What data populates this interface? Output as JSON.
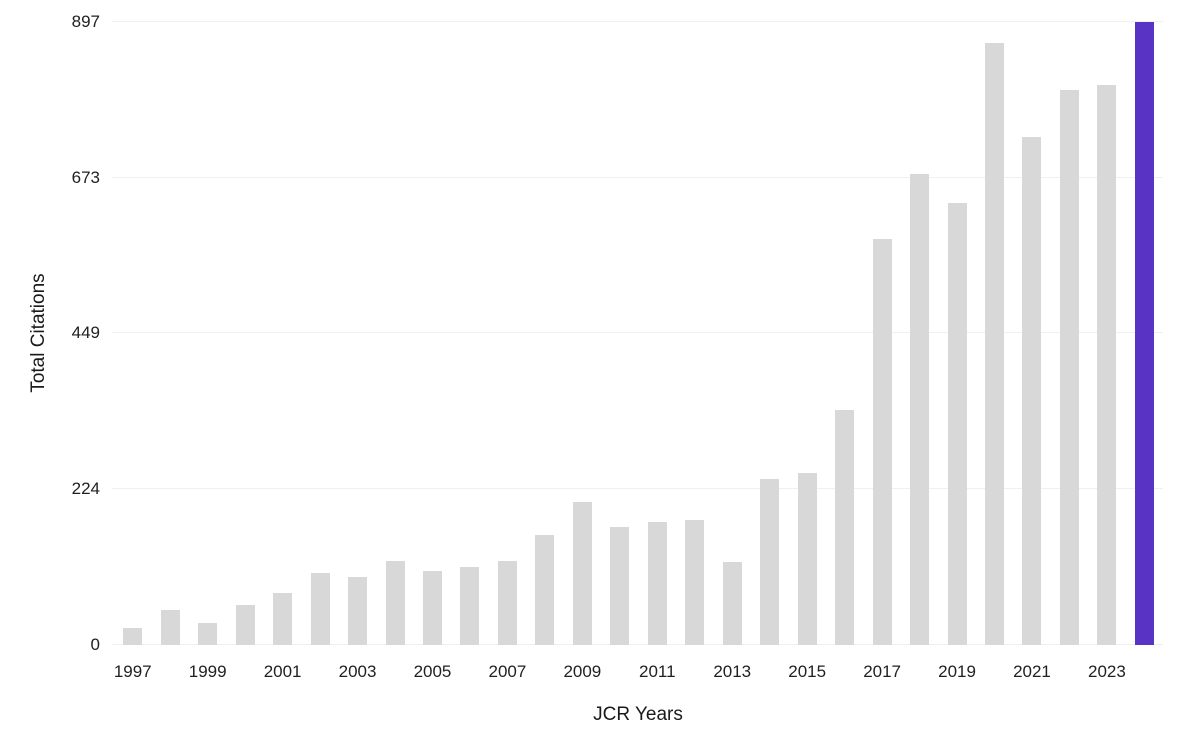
{
  "chart_data": {
    "type": "bar",
    "title": "",
    "xlabel": "JCR Years",
    "ylabel": "Total Citations",
    "categories": [
      "1997",
      "1998",
      "1999",
      "2000",
      "2001",
      "2002",
      "2003",
      "2004",
      "2005",
      "2006",
      "2007",
      "2008",
      "2009",
      "2010",
      "2011",
      "2012",
      "2013",
      "2014",
      "2015",
      "2016",
      "2017",
      "2018",
      "2019",
      "2020",
      "2021",
      "2022",
      "2023",
      "2024"
    ],
    "values": [
      25,
      51,
      31,
      57,
      75,
      103,
      98,
      121,
      107,
      113,
      121,
      158,
      206,
      170,
      177,
      180,
      120,
      239,
      247,
      338,
      584,
      678,
      636,
      867,
      731,
      799,
      807,
      897
    ],
    "yticks": [
      0,
      224,
      449,
      673,
      897
    ],
    "ylim": [
      0,
      897
    ],
    "x_tick_labels": [
      "1997",
      "1999",
      "2001",
      "2003",
      "2005",
      "2007",
      "2009",
      "2011",
      "2013",
      "2015",
      "2017",
      "2019",
      "2021",
      "2023"
    ],
    "grid": true,
    "legend_position": "none",
    "bar_color": "#d8d8d8",
    "highlight_color": "#5833c4",
    "highlight_category": "2024"
  }
}
